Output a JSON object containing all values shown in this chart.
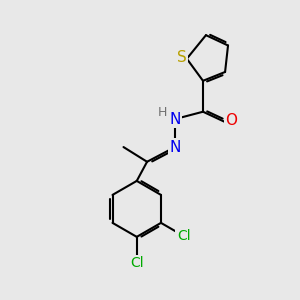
{
  "background_color": "#e8e8e8",
  "atom_colors": {
    "S": "#b8a000",
    "N": "#0000ee",
    "O": "#ee0000",
    "Cl": "#00aa00",
    "C": "#000000",
    "H": "#707070"
  },
  "bond_color": "#000000",
  "bond_width": 1.5,
  "font_size_atoms": 10,
  "figsize": [
    3.0,
    3.0
  ],
  "dpi": 100,
  "xlim": [
    0,
    10
  ],
  "ylim": [
    0,
    10
  ]
}
